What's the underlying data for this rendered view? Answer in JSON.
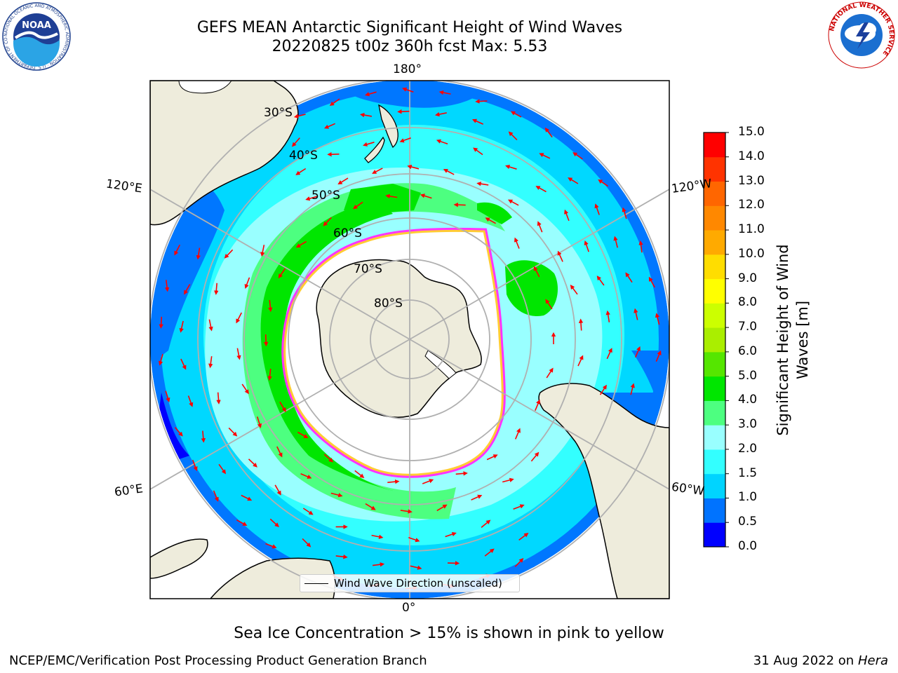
{
  "title_line1": "GEFS MEAN Antarctic Significant Height of Wind Waves",
  "title_line2": "20220825 t00z 360h fcst   Max: 5.53",
  "map": {
    "projection": "south-polar-stereographic",
    "longitude_labels": [
      "180°",
      "120°E",
      "120°W",
      "60°E",
      "60°W",
      "0°"
    ],
    "latitude_labels": [
      "30°S",
      "40°S",
      "50°S",
      "60°S",
      "70°S",
      "80°S"
    ],
    "land_color": "#eeecdc",
    "arrow_color": "#ff0000",
    "sea_ice_colors": [
      "#ff33ff",
      "#ffcc33"
    ]
  },
  "legend": {
    "label": "Wind Wave Direction (unscaled)"
  },
  "colorbar": {
    "label": "Significant Height of Wind Waves [m]",
    "label_line1": "Significant Height of Wind",
    "label_line2": "Waves [m]",
    "ticks": [
      "0.0",
      "0.5",
      "1.0",
      "1.5",
      "2.0",
      "3.0",
      "4.0",
      "5.0",
      "6.0",
      "7.0",
      "8.0",
      "9.0",
      "10.0",
      "11.0",
      "12.0",
      "13.0",
      "14.0",
      "15.0"
    ],
    "colors": [
      "#0000ff",
      "#0073ff",
      "#00d4ff",
      "#33ffff",
      "#99ffff",
      "#4dff80",
      "#00e600",
      "#55e600",
      "#aaee00",
      "#ccff00",
      "#ffff00",
      "#ffdd00",
      "#ffaa00",
      "#ff8800",
      "#ff6600",
      "#ff3300",
      "#ff0000"
    ]
  },
  "note": "Sea Ice Concentration > 15% is shown in pink to yellow",
  "footer_left": "NCEP/EMC/Verification Post Processing Product Generation Branch",
  "footer_right_date": "31 Aug 2022 on",
  "footer_right_machine": "Hera",
  "logos": {
    "left": "noaa-logo",
    "right": "nws-logo",
    "left_text": "NOAA",
    "left_ring_text": "NATIONAL OCEANIC AND ATMOSPHERIC ADMINISTRATION · U.S. DEPARTMENT OF COMMERCE",
    "right_ring_text": "NATIONAL WEATHER SERVICE"
  }
}
